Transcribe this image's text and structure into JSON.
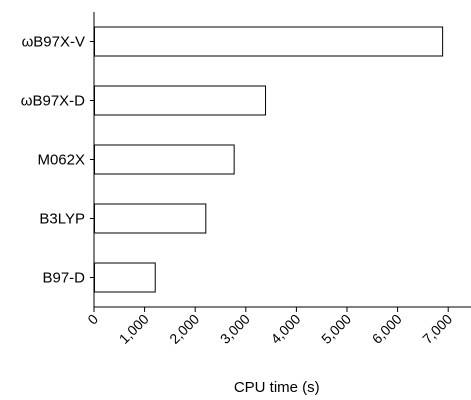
{
  "chart_data": {
    "type": "bar",
    "orientation": "horizontal",
    "categories": [
      "ωB97X-V",
      "ωB97X-D",
      "M062X",
      "B3LYP",
      "B97-D"
    ],
    "values": [
      6880,
      3380,
      2760,
      2200,
      1200
    ],
    "title": "",
    "xlabel": "CPU time (s)",
    "ylabel": "",
    "xlim": [
      0,
      7500
    ],
    "xticks": [
      0,
      1000,
      2000,
      3000,
      4000,
      5000,
      6000,
      7000
    ],
    "xtick_labels": [
      "0",
      "1,000",
      "2,000",
      "3,000",
      "4,000",
      "5,000",
      "6,000",
      "7,000"
    ],
    "grid": false,
    "legend": "none",
    "colors": {
      "bar_fill": "#ffffff",
      "bar_stroke": "#000000",
      "axis": "#000000",
      "text": "#000000"
    }
  }
}
